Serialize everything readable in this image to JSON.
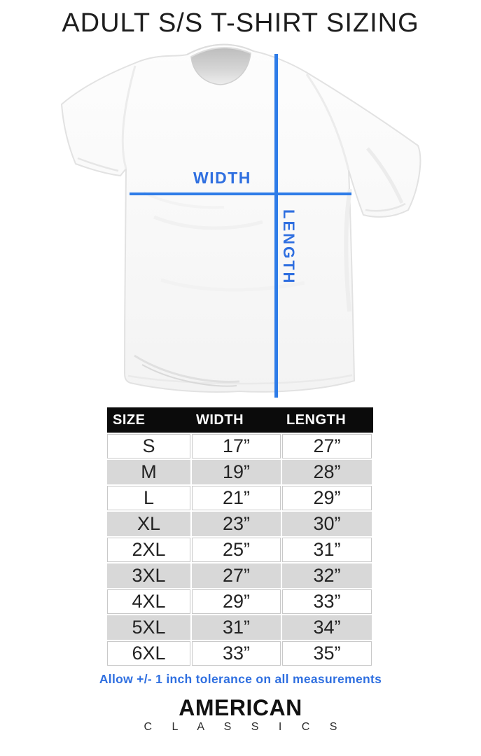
{
  "title": "ADULT S/S T-SHIRT SIZING",
  "diagram": {
    "width_label": "WIDTH",
    "length_label": "LENGTH"
  },
  "size_table": {
    "columns": [
      "SIZE",
      "WIDTH",
      "LENGTH"
    ],
    "rows": [
      [
        "S",
        "17”",
        "27”"
      ],
      [
        "M",
        "19”",
        "28”"
      ],
      [
        "L",
        "21”",
        "29”"
      ],
      [
        "XL",
        "23”",
        "30”"
      ],
      [
        "2XL",
        "25”",
        "31”"
      ],
      [
        "3XL",
        "27”",
        "32”"
      ],
      [
        "4XL",
        "29”",
        "33”"
      ],
      [
        "5XL",
        "31”",
        "34”"
      ],
      [
        "6XL",
        "33”",
        "35”"
      ]
    ]
  },
  "tolerance_note": "Allow +/- 1 inch tolerance on all measurements",
  "brand": {
    "name": "AMERICAN",
    "subname": "C L A S S I C S"
  },
  "colors": {
    "line_blue": "#2e7ce8",
    "label_blue": "#2f6fe0",
    "header_bg": "#0b0b0b",
    "stripe_gray": "#d8d8d8"
  }
}
